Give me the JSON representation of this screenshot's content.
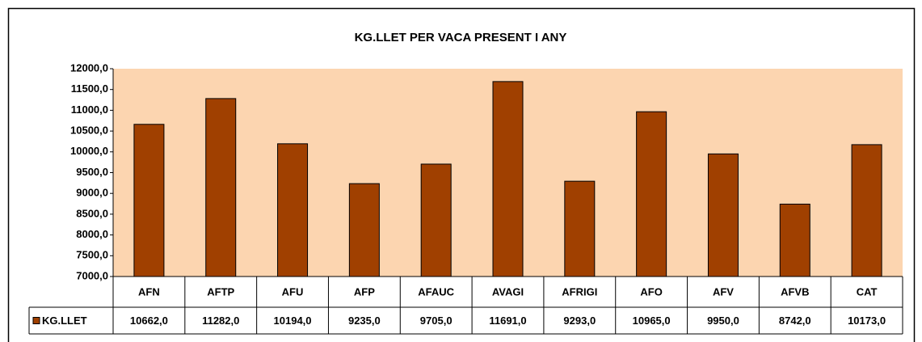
{
  "chart_data": {
    "type": "bar",
    "title": "KG.LLET PER VACA PRESENT I ANY",
    "categories": [
      "AFN",
      "AFTP",
      "AFU",
      "AFP",
      "AFAUC",
      "AVAGI",
      "AFRIGI",
      "AFO",
      "AFV",
      "AFVB",
      "CAT"
    ],
    "series": [
      {
        "name": "KG.LLET",
        "color": "#a04000",
        "values": [
          10662,
          11282,
          10194,
          9235,
          9705,
          11691,
          9293,
          10965,
          9950,
          8742,
          10173
        ],
        "value_labels": [
          "10662,0",
          "11282,0",
          "10194,0",
          "9235,0",
          "9705,0",
          "11691,0",
          "9293,0",
          "10965,0",
          "9950,0",
          "8742,0",
          "10173,0"
        ]
      }
    ],
    "ylim": [
      7000,
      12000
    ],
    "yticks": [
      {
        "value": 7000,
        "label": "7000,0"
      },
      {
        "value": 7500,
        "label": "7500,0"
      },
      {
        "value": 8000,
        "label": "8000,0"
      },
      {
        "value": 8500,
        "label": "8500,0"
      },
      {
        "value": 9000,
        "label": "9000,0"
      },
      {
        "value": 9500,
        "label": "9500,0"
      },
      {
        "value": 10000,
        "label": "10000,0"
      },
      {
        "value": 10500,
        "label": "10500,0"
      },
      {
        "value": 11000,
        "label": "11000,0"
      },
      {
        "value": 11500,
        "label": "11500,0"
      },
      {
        "value": 12000,
        "label": "12000,0"
      }
    ],
    "plot_color": "#fcd5b0",
    "data_table": true
  }
}
